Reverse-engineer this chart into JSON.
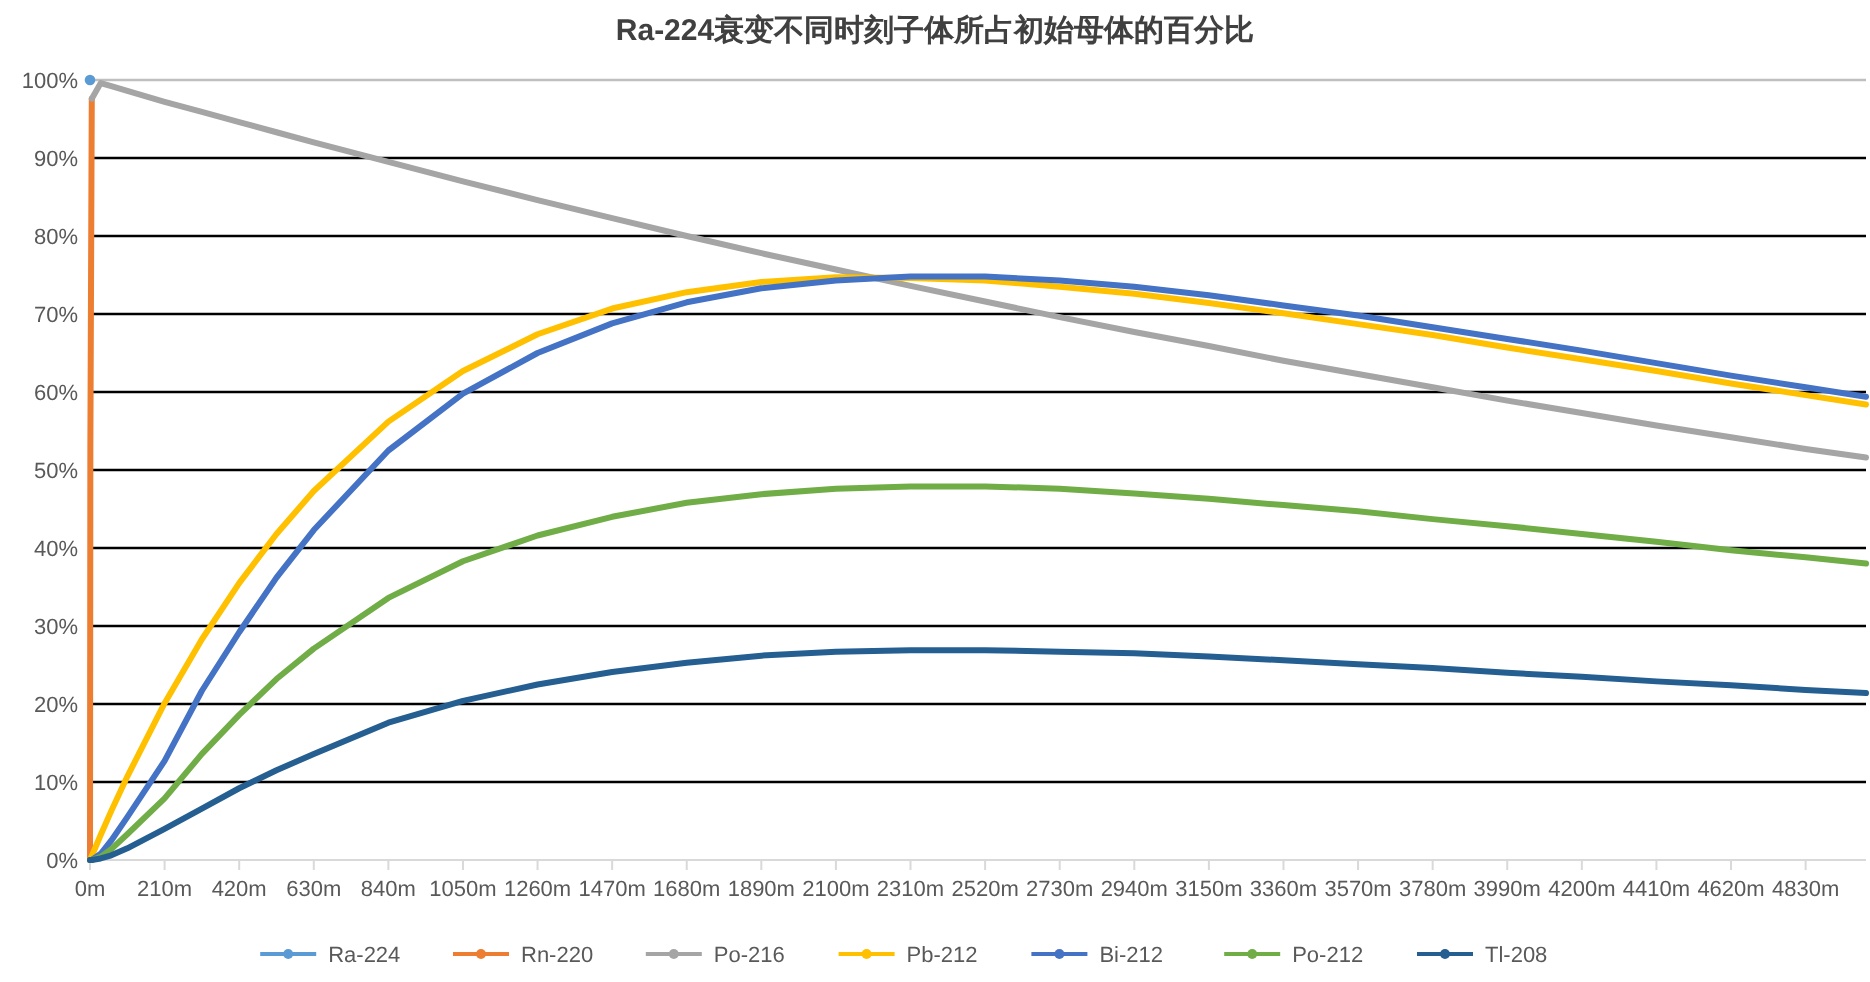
{
  "chart_data": {
    "type": "line",
    "title": "Ra-224衰变不同时刻子体所占初始母体的百分比",
    "x": [
      0,
      1,
      5,
      30,
      60,
      105,
      210,
      315,
      420,
      525,
      630,
      840,
      1050,
      1260,
      1470,
      1680,
      1890,
      2100,
      2310,
      2520,
      2730,
      2940,
      3150,
      3360,
      3570,
      3780,
      3990,
      4200,
      4410,
      4620,
      4830,
      5000
    ],
    "series": [
      {
        "name": "Ra-224",
        "color": "#5b9bd5",
        "marker": "circle",
        "values": [
          100,
          null,
          null,
          null,
          null,
          null,
          null,
          null,
          null,
          null,
          null,
          null,
          null,
          null,
          null,
          null,
          null,
          null,
          null,
          null,
          null,
          null,
          null,
          null,
          null,
          null,
          null,
          null,
          null,
          null,
          null,
          null
        ]
      },
      {
        "name": "Rn-220",
        "color": "#ed7d31",
        "values": [
          0,
          52.7,
          97.6,
          null,
          null,
          null,
          null,
          null,
          null,
          null,
          null,
          null,
          null,
          null,
          null,
          null,
          null,
          null,
          null,
          null,
          null,
          null,
          null,
          null,
          null,
          null,
          null,
          null,
          null,
          null,
          null,
          null
        ]
      },
      {
        "name": "Po-216",
        "color": "#a5a5a5",
        "values": [
          null,
          null,
          97.6,
          99.6,
          99.2,
          98.6,
          97.2,
          95.9,
          94.6,
          93.3,
          92.0,
          89.5,
          87.0,
          84.6,
          82.3,
          80.0,
          77.8,
          75.7,
          73.6,
          71.6,
          69.6,
          67.7,
          65.9,
          64.0,
          62.3,
          60.6,
          58.9,
          57.3,
          55.7,
          54.2,
          52.7,
          51.6
        ]
      },
      {
        "name": "Pb-212",
        "color": "#ffc000",
        "values": [
          0,
          0.1,
          0.5,
          3.2,
          6.3,
          10.7,
          20.1,
          28.3,
          35.5,
          41.8,
          47.3,
          56.2,
          62.7,
          67.4,
          70.7,
          72.8,
          74.1,
          74.7,
          74.6,
          74.3,
          73.5,
          72.6,
          71.4,
          70.1,
          68.7,
          67.3,
          65.7,
          64.2,
          62.7,
          61.1,
          59.6,
          58.4
        ]
      },
      {
        "name": "Bi-212",
        "color": "#4472c4",
        "values": [
          0,
          0,
          0,
          0.8,
          2.5,
          5.5,
          12.7,
          21.7,
          29.2,
          36.2,
          42.3,
          52.5,
          59.8,
          65.0,
          68.8,
          71.5,
          73.3,
          74.3,
          74.8,
          74.8,
          74.3,
          73.5,
          72.4,
          71.1,
          69.8,
          68.3,
          66.8,
          65.3,
          63.7,
          62.1,
          60.6,
          59.4
        ]
      },
      {
        "name": "Po-212",
        "color": "#70ad47",
        "values": [
          0,
          0,
          0,
          0.4,
          1.4,
          3.3,
          7.9,
          13.6,
          18.6,
          23.2,
          27.1,
          33.6,
          38.3,
          41.6,
          44.0,
          45.8,
          46.9,
          47.6,
          47.9,
          47.9,
          47.6,
          47.0,
          46.3,
          45.5,
          44.7,
          43.7,
          42.8,
          41.8,
          40.8,
          39.7,
          38.8,
          38.0
        ]
      },
      {
        "name": "Tl-208",
        "color": "#255e91",
        "values": [
          0,
          0,
          0,
          0.2,
          0.6,
          1.5,
          4.0,
          6.6,
          9.2,
          11.5,
          13.6,
          17.6,
          20.4,
          22.5,
          24.1,
          25.3,
          26.2,
          26.7,
          26.9,
          26.9,
          26.7,
          26.5,
          26.1,
          25.6,
          25.1,
          24.6,
          24.0,
          23.5,
          22.9,
          22.4,
          21.8,
          21.4
        ]
      }
    ],
    "xlim": [
      0,
      5000
    ],
    "xticks": [
      {
        "value": 0,
        "label": "0m"
      },
      {
        "value": 210,
        "label": "210m"
      },
      {
        "value": 420,
        "label": "420m"
      },
      {
        "value": 630,
        "label": "630m"
      },
      {
        "value": 840,
        "label": "840m"
      },
      {
        "value": 1050,
        "label": "1050m"
      },
      {
        "value": 1260,
        "label": "1260m"
      },
      {
        "value": 1470,
        "label": "1470m"
      },
      {
        "value": 1680,
        "label": "1680m"
      },
      {
        "value": 1890,
        "label": "1890m"
      },
      {
        "value": 2100,
        "label": "2100m"
      },
      {
        "value": 2310,
        "label": "2310m"
      },
      {
        "value": 2520,
        "label": "2520m"
      },
      {
        "value": 2730,
        "label": "2730m"
      },
      {
        "value": 2940,
        "label": "2940m"
      },
      {
        "value": 3150,
        "label": "3150m"
      },
      {
        "value": 3360,
        "label": "3360m"
      },
      {
        "value": 3570,
        "label": "3570m"
      },
      {
        "value": 3780,
        "label": "3780m"
      },
      {
        "value": 3990,
        "label": "3990m"
      },
      {
        "value": 4200,
        "label": "4200m"
      },
      {
        "value": 4410,
        "label": "4410m"
      },
      {
        "value": 4620,
        "label": "4620m"
      },
      {
        "value": 4830,
        "label": "4830m"
      }
    ],
    "ylim": [
      0,
      100
    ],
    "yticks": [
      {
        "value": 0,
        "label": "0%"
      },
      {
        "value": 10,
        "label": "10%"
      },
      {
        "value": 20,
        "label": "20%"
      },
      {
        "value": 30,
        "label": "30%"
      },
      {
        "value": 40,
        "label": "40%"
      },
      {
        "value": 50,
        "label": "50%"
      },
      {
        "value": 60,
        "label": "60%"
      },
      {
        "value": 70,
        "label": "70%"
      },
      {
        "value": 80,
        "label": "80%"
      },
      {
        "value": 90,
        "label": "90%"
      },
      {
        "value": 100,
        "label": "100%"
      }
    ],
    "grid": "y",
    "legend": "bottom"
  }
}
